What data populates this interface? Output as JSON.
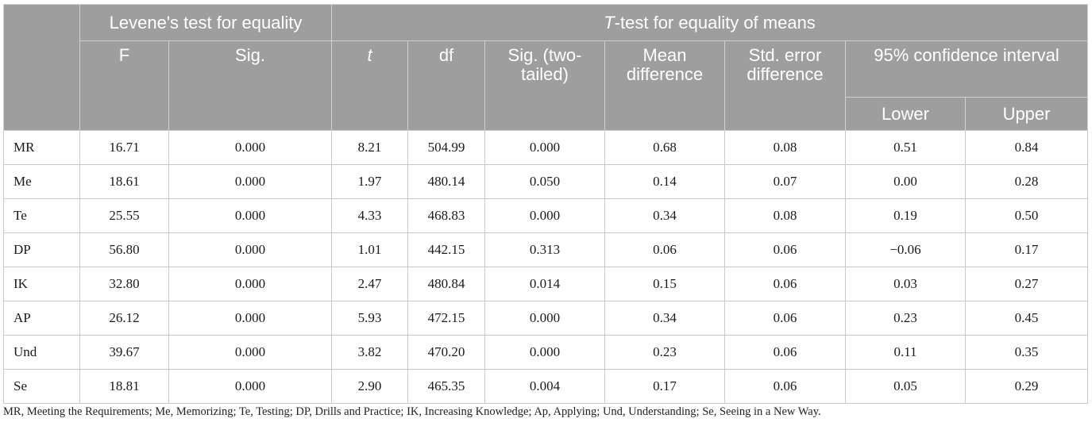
{
  "header": {
    "group_levene": "Levene's test for equality",
    "group_ttest_italic": "T",
    "group_ttest_rest": "-test for equality of means",
    "col_f": "F",
    "col_sig": "Sig.",
    "col_t": "t",
    "col_df": "df",
    "col_sig2_line1": "Sig. (two-",
    "col_sig2_line2": "tailed)",
    "col_meandiff_line1": "Mean",
    "col_meandiff_line2": "difference",
    "col_stderr_line1": "Std. error",
    "col_stderr_line2": "difference",
    "col_ci": "95% confidence interval",
    "col_lower": "Lower",
    "col_upper": "Upper"
  },
  "rows": [
    {
      "label": "MR",
      "f": "16.71",
      "sig": "0.000",
      "t": "8.21",
      "df": "504.99",
      "sig2": "0.000",
      "mean_diff": "0.68",
      "std_err": "0.08",
      "lower": "0.51",
      "upper": "0.84"
    },
    {
      "label": "Me",
      "f": "18.61",
      "sig": "0.000",
      "t": "1.97",
      "df": "480.14",
      "sig2": "0.050",
      "mean_diff": "0.14",
      "std_err": "0.07",
      "lower": "0.00",
      "upper": "0.28"
    },
    {
      "label": "Te",
      "f": "25.55",
      "sig": "0.000",
      "t": "4.33",
      "df": "468.83",
      "sig2": "0.000",
      "mean_diff": "0.34",
      "std_err": "0.08",
      "lower": "0.19",
      "upper": "0.50"
    },
    {
      "label": "DP",
      "f": "56.80",
      "sig": "0.000",
      "t": "1.01",
      "df": "442.15",
      "sig2": "0.313",
      "mean_diff": "0.06",
      "std_err": "0.06",
      "lower": "−0.06",
      "upper": "0.17"
    },
    {
      "label": "IK",
      "f": "32.80",
      "sig": "0.000",
      "t": "2.47",
      "df": "480.84",
      "sig2": "0.014",
      "mean_diff": "0.15",
      "std_err": "0.06",
      "lower": "0.03",
      "upper": "0.27"
    },
    {
      "label": "AP",
      "f": "26.12",
      "sig": "0.000",
      "t": "5.93",
      "df": "472.15",
      "sig2": "0.000",
      "mean_diff": "0.34",
      "std_err": "0.06",
      "lower": "0.23",
      "upper": "0.45"
    },
    {
      "label": "Und",
      "f": "39.67",
      "sig": "0.000",
      "t": "3.82",
      "df": "470.20",
      "sig2": "0.000",
      "mean_diff": "0.23",
      "std_err": "0.06",
      "lower": "0.11",
      "upper": "0.35"
    },
    {
      "label": "Se",
      "f": "18.81",
      "sig": "0.000",
      "t": "2.90",
      "df": "465.35",
      "sig2": "0.004",
      "mean_diff": "0.17",
      "std_err": "0.06",
      "lower": "0.05",
      "upper": "0.29"
    }
  ],
  "footnote": "MR, Meeting the Requirements; Me, Memorizing; Te, Testing; DP, Drills and Practice; IK, Increasing Knowledge; Ap, Applying; Und, Understanding; Se, Seeing in a New Way."
}
